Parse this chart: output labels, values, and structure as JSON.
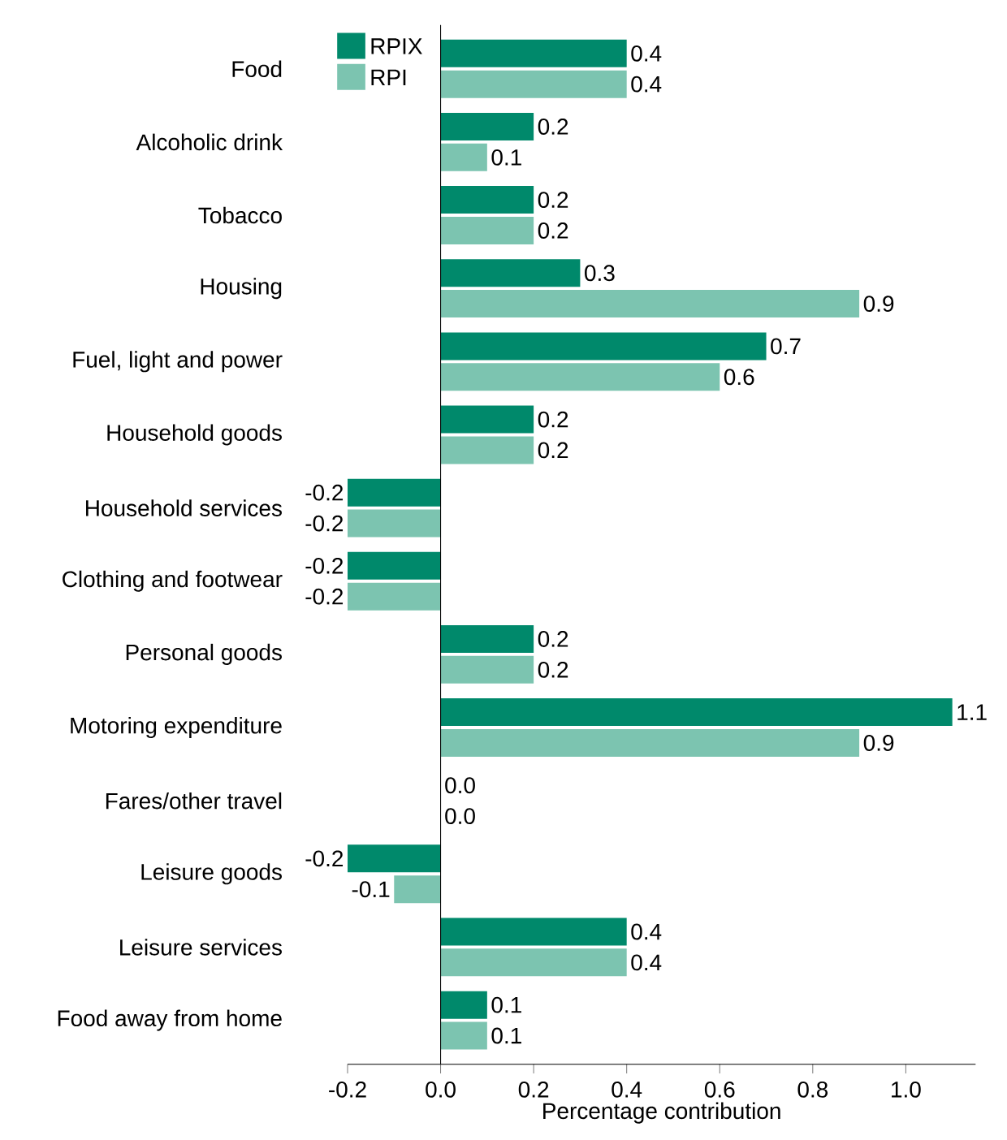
{
  "chart_data": {
    "type": "bar",
    "orientation": "horizontal",
    "xlabel": "Percentage contribution",
    "categories": [
      "Food",
      "Alcoholic drink",
      "Tobacco",
      "Housing",
      "Fuel, light and power",
      "Household goods",
      "Household services",
      "Clothing and footwear",
      "Personal goods",
      "Motoring expenditure",
      "Fares/other travel",
      "Leisure goods",
      "Leisure services",
      "Food away from home"
    ],
    "series": [
      {
        "name": "RPIX",
        "color": "#00896b",
        "values": [
          0.4,
          0.2,
          0.2,
          0.3,
          0.7,
          0.2,
          -0.2,
          -0.2,
          0.2,
          1.1,
          0.0,
          -0.2,
          0.4,
          0.1
        ],
        "value_labels": [
          "0.4",
          "0.2",
          "0.2",
          "0.3",
          "0.7",
          "0.2",
          "-0.2",
          "-0.2",
          "0.2",
          "1.1",
          "0.0",
          "-0.2",
          "0.4",
          "0.1"
        ]
      },
      {
        "name": "RPI",
        "color": "#7cc4b0",
        "values": [
          0.4,
          0.1,
          0.2,
          0.9,
          0.6,
          0.2,
          -0.2,
          -0.2,
          0.2,
          0.9,
          0.0,
          -0.1,
          0.4,
          0.1
        ],
        "value_labels": [
          "0.4",
          "0.1",
          "0.2",
          "0.9",
          "0.6",
          "0.2",
          "-0.2",
          "-0.2",
          "0.2",
          "0.9",
          "0.0",
          "-0.1",
          "0.4",
          "0.1"
        ]
      }
    ],
    "xlim": [
      -0.2,
      1.15
    ],
    "xticks": [
      {
        "value": -0.2,
        "label": "-0.2"
      },
      {
        "value": 0,
        "label": "0.0"
      },
      {
        "value": 0.2,
        "label": "0.2"
      },
      {
        "value": 0.4,
        "label": "0.4"
      },
      {
        "value": 0.6,
        "label": "0.6"
      },
      {
        "value": 0.8,
        "label": "0.8"
      },
      {
        "value": 1.0,
        "label": "1.0"
      }
    ],
    "legend": "top left"
  }
}
